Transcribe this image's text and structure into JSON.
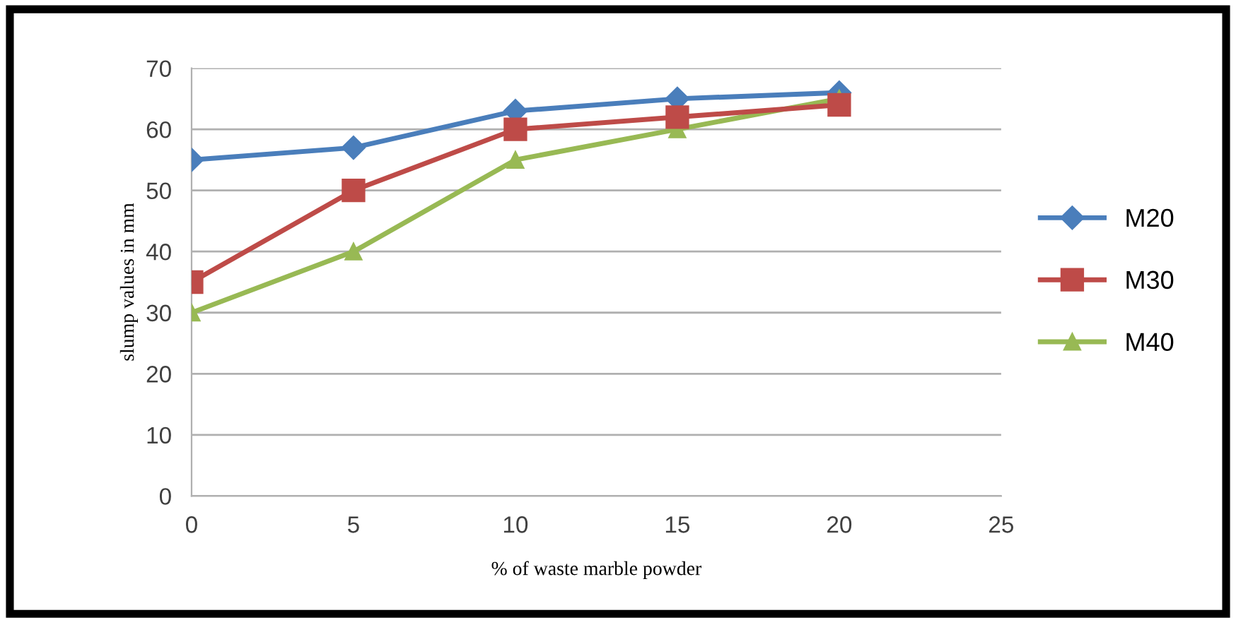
{
  "chart_data": {
    "type": "line",
    "xlabel": "% of waste marble powder",
    "ylabel": "slump values in mm",
    "x": [
      0,
      5,
      10,
      15,
      20
    ],
    "series": [
      {
        "name": "M20",
        "color": "#4a7ebb",
        "marker": "diamond",
        "values": [
          55,
          57,
          63,
          65,
          66
        ]
      },
      {
        "name": "M30",
        "color": "#be4b48",
        "marker": "square",
        "values": [
          35,
          50,
          60,
          62,
          64
        ]
      },
      {
        "name": "M40",
        "color": "#98b954",
        "marker": "triangle",
        "values": [
          30,
          40,
          55,
          60,
          65
        ]
      }
    ],
    "xlim": [
      0,
      25
    ],
    "xticks": [
      0,
      5,
      10,
      15,
      20,
      25
    ],
    "ylim": [
      0,
      70
    ],
    "yticks": [
      0,
      10,
      20,
      30,
      40,
      50,
      60,
      70
    ],
    "grid": "y",
    "legend": "right",
    "line_style": "solid"
  }
}
